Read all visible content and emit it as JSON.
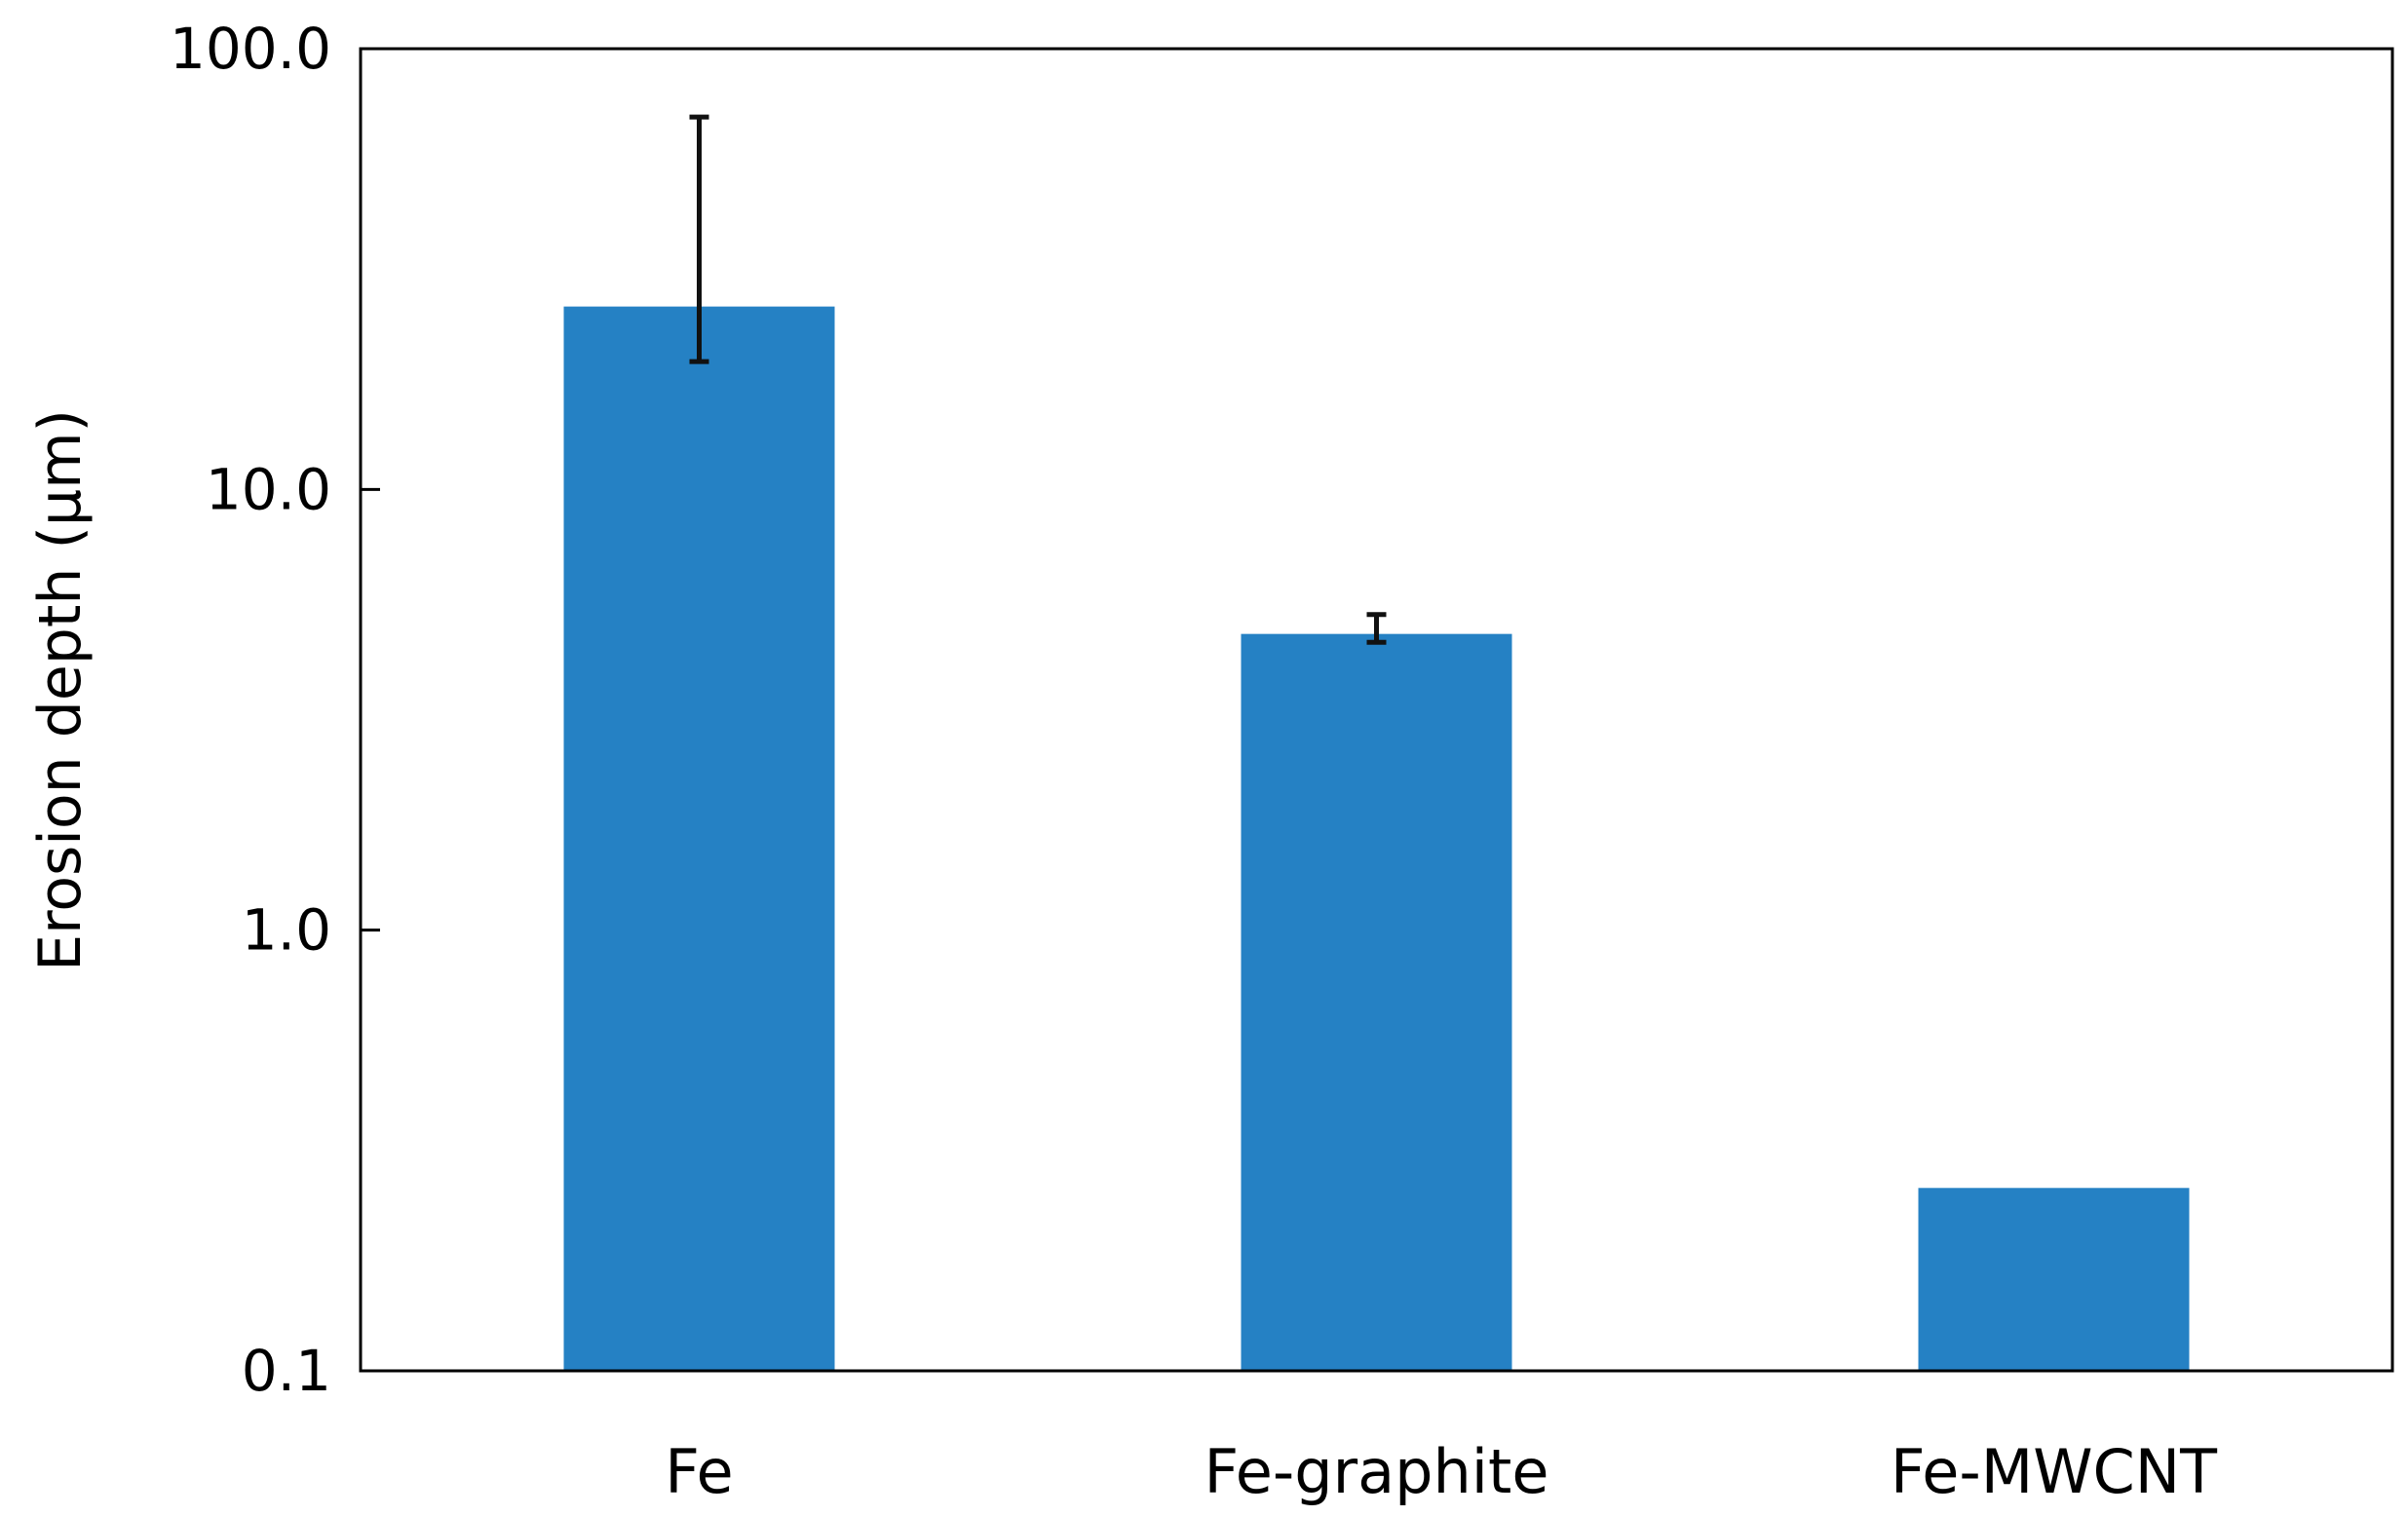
{
  "chart_data": {
    "type": "bar",
    "title": "",
    "xlabel": "",
    "ylabel": "Erosion depth  (µm)",
    "yscale": "log",
    "ylim": [
      0.1,
      100
    ],
    "yticks": [
      0.1,
      1,
      10,
      100
    ],
    "ytick_labels": [
      "0.1",
      "1.0",
      "10.0",
      "100.0"
    ],
    "categories": [
      "Fe",
      "Fe-graphite",
      "Fe-MWCNT"
    ],
    "values": [
      26,
      4.7,
      0.26
    ],
    "error_low": [
      19.5,
      4.5,
      null
    ],
    "error_high": [
      70,
      5.2,
      null
    ],
    "grid": false,
    "legend": "none",
    "bar_color": "#2581c4",
    "axis_color": "#000000"
  }
}
